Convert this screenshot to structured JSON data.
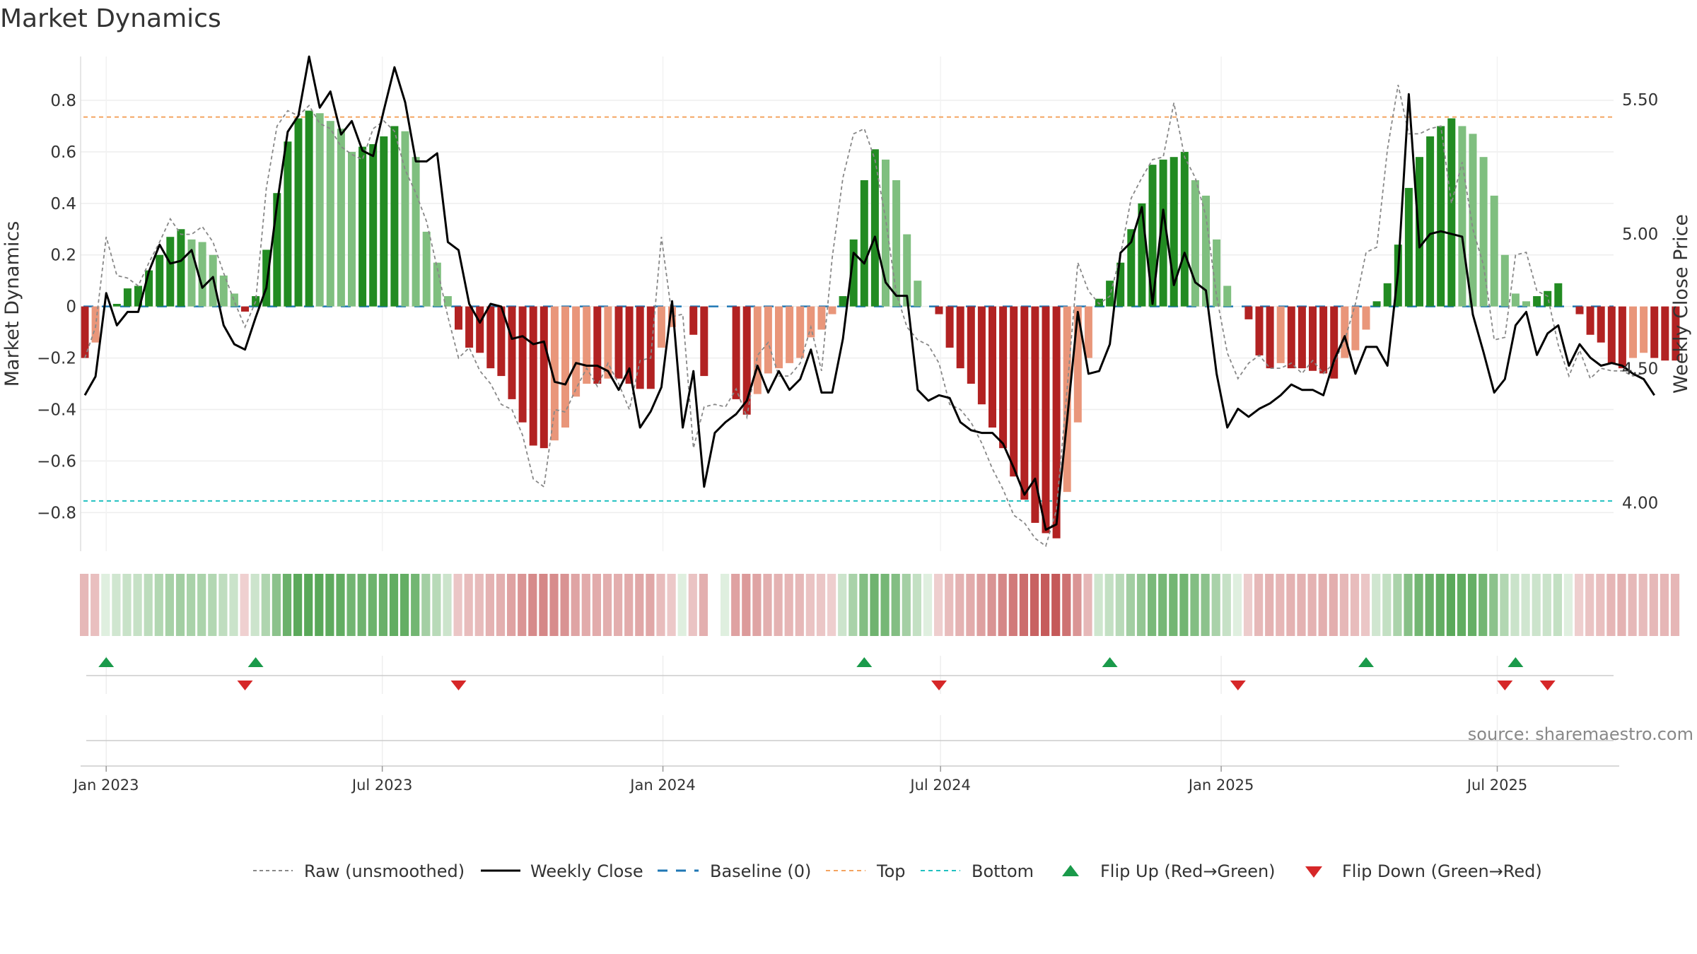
{
  "chart_data": {
    "type": "bar",
    "title": "Market Dynamics",
    "ylabel": "Market Dynamics",
    "y2label": "Weekly Close Price",
    "ylim": [
      -0.95,
      0.97
    ],
    "y2lim": [
      3.82,
      5.66
    ],
    "yticks": [
      0.8,
      0.6,
      0.4,
      0.2,
      0,
      -0.2,
      -0.4,
      -0.6,
      -0.8
    ],
    "ytick_labels": [
      "0.8",
      "0.6",
      "0.4",
      "0.2",
      "0",
      "−0.2",
      "−0.4",
      "−0.6",
      "−0.8"
    ],
    "y2ticks": [
      5.5,
      5.0,
      4.5,
      4.0
    ],
    "y2tick_labels": [
      "5.50",
      "5.00",
      "4.50",
      "4.00"
    ],
    "x_ticks": [
      {
        "date": "2023-01-01",
        "label": "Jan 2023"
      },
      {
        "date": "2023-07-01",
        "label": "Jul 2023"
      },
      {
        "date": "2024-01-01",
        "label": "Jan 2024"
      },
      {
        "date": "2024-07-01",
        "label": "Jul 2024"
      },
      {
        "date": "2025-01-01",
        "label": "Jan 2025"
      },
      {
        "date": "2025-07-01",
        "label": "Jul 2025"
      }
    ],
    "top_level": 0.735,
    "bottom_level": -0.755,
    "weeks": {
      "start": "2022-12-18",
      "interval_days": 7
    },
    "histogram": [
      -0.2,
      -0.14,
      0,
      0.01,
      0.07,
      0.08,
      0.14,
      0.2,
      0.27,
      0.3,
      0.26,
      0.25,
      0.2,
      0.12,
      0.05,
      -0.02,
      0.04,
      0.22,
      0.44,
      0.64,
      0.73,
      0.76,
      0.75,
      0.72,
      0.69,
      0.6,
      0.62,
      0.63,
      0.66,
      0.7,
      0.68,
      0.58,
      0.29,
      0.17,
      0.04,
      -0.09,
      -0.16,
      -0.18,
      -0.24,
      -0.27,
      -0.36,
      -0.45,
      -0.54,
      -0.55,
      -0.52,
      -0.47,
      -0.35,
      -0.3,
      -0.3,
      -0.28,
      -0.28,
      -0.3,
      -0.32,
      -0.32,
      -0.16,
      -0.08,
      0,
      -0.11,
      -0.27,
      0,
      0,
      -0.36,
      -0.42,
      -0.34,
      -0.26,
      -0.24,
      -0.22,
      -0.2,
      -0.12,
      -0.09,
      -0.03,
      0.04,
      0.26,
      0.49,
      0.61,
      0.57,
      0.49,
      0.28,
      0.1,
      0,
      -0.03,
      -0.16,
      -0.24,
      -0.3,
      -0.38,
      -0.47,
      -0.55,
      -0.66,
      -0.75,
      -0.84,
      -0.88,
      -0.9,
      -0.72,
      -0.45,
      -0.2,
      0.03,
      0.1,
      0.17,
      0.3,
      0.4,
      0.55,
      0.57,
      0.58,
      0.6,
      0.49,
      0.43,
      0.26,
      0.08,
      0,
      -0.05,
      -0.19,
      -0.24,
      -0.22,
      -0.24,
      -0.24,
      -0.25,
      -0.26,
      -0.28,
      -0.2,
      -0.17,
      -0.09,
      0.02,
      0.09,
      0.24,
      0.46,
      0.58,
      0.66,
      0.7,
      0.73,
      0.7,
      0.67,
      0.58,
      0.43,
      0.2,
      0.05,
      0.02,
      0.04,
      0.06,
      0.09,
      0,
      -0.03,
      -0.11,
      -0.14,
      -0.22,
      -0.24,
      -0.2,
      -0.18,
      -0.2,
      -0.21,
      -0.21
    ],
    "raw": [
      -0.2,
      -0.08,
      0.27,
      0.12,
      0.11,
      0.08,
      0.17,
      0.25,
      0.34,
      0.28,
      0.28,
      0.31,
      0.25,
      0.13,
      0.02,
      -0.08,
      0.02,
      0.46,
      0.7,
      0.76,
      0.74,
      0.78,
      0.71,
      0.69,
      0.62,
      0.59,
      0.57,
      0.69,
      0.72,
      0.68,
      0.53,
      0.44,
      0.33,
      0.15,
      -0.04,
      -0.2,
      -0.16,
      -0.25,
      -0.3,
      -0.38,
      -0.4,
      -0.5,
      -0.67,
      -0.7,
      -0.4,
      -0.41,
      -0.32,
      -0.24,
      -0.31,
      -0.22,
      -0.3,
      -0.4,
      -0.21,
      -0.2,
      0.27,
      -0.04,
      -0.03,
      -0.55,
      -0.39,
      -0.38,
      -0.39,
      -0.32,
      -0.43,
      -0.19,
      -0.14,
      -0.27,
      -0.27,
      -0.22,
      -0.08,
      -0.25,
      0.19,
      0.5,
      0.67,
      0.69,
      0.57,
      0.34,
      0.05,
      -0.08,
      -0.13,
      -0.15,
      -0.22,
      -0.38,
      -0.4,
      -0.45,
      -0.53,
      -0.63,
      -0.71,
      -0.81,
      -0.84,
      -0.9,
      -0.93,
      -0.79,
      -0.32,
      0.17,
      0.06,
      0.01,
      0.04,
      0.2,
      0.42,
      0.5,
      0.57,
      0.58,
      0.79,
      0.58,
      0.5,
      0.35,
      0.04,
      -0.18,
      -0.28,
      -0.22,
      -0.19,
      -0.24,
      -0.24,
      -0.22,
      -0.26,
      -0.21,
      -0.26,
      -0.22,
      -0.13,
      0.01,
      0.21,
      0.23,
      0.61,
      0.86,
      0.67,
      0.67,
      0.69,
      0.7,
      0.4,
      0.56,
      0.3,
      0.16,
      -0.13,
      -0.12,
      0.2,
      0.21,
      0.06,
      0.04,
      -0.15,
      -0.27,
      -0.17,
      -0.28,
      -0.24,
      -0.25,
      -0.25,
      -0.27,
      -0.26
    ],
    "close": [
      4.4,
      4.47,
      4.78,
      4.66,
      4.71,
      4.71,
      4.86,
      4.96,
      4.89,
      4.9,
      4.94,
      4.8,
      4.84,
      4.66,
      4.59,
      4.57,
      4.69,
      4.8,
      5.11,
      5.38,
      5.44,
      5.66,
      5.47,
      5.53,
      5.37,
      5.42,
      5.31,
      5.29,
      5.46,
      5.62,
      5.49,
      5.27,
      5.27,
      5.3,
      4.97,
      4.94,
      4.74,
      4.67,
      4.74,
      4.73,
      4.61,
      4.62,
      4.59,
      4.6,
      4.45,
      4.44,
      4.52,
      4.51,
      4.51,
      4.49,
      4.42,
      4.5,
      4.28,
      4.34,
      4.43,
      4.75,
      4.28,
      4.49,
      4.06,
      4.26,
      4.3,
      4.33,
      4.38,
      4.51,
      4.41,
      4.49,
      4.42,
      4.46,
      4.57,
      4.41,
      4.41,
      4.61,
      4.93,
      4.89,
      4.99,
      4.82,
      4.77,
      4.77,
      4.42,
      4.38,
      4.4,
      4.39,
      4.3,
      4.27,
      4.26,
      4.26,
      4.22,
      4.13,
      4.03,
      4.09,
      3.9,
      3.92,
      4.31,
      4.71,
      4.48,
      4.49,
      4.59,
      4.93,
      4.97,
      5.1,
      4.74,
      5.09,
      4.81,
      4.93,
      4.82,
      4.79,
      4.48,
      4.28,
      4.35,
      4.32,
      4.35,
      4.37,
      4.4,
      4.44,
      4.42,
      4.42,
      4.4,
      4.53,
      4.62,
      4.48,
      4.58,
      4.58,
      4.51,
      4.86,
      5.52,
      4.95,
      5.0,
      5.01,
      5.0,
      4.99,
      4.7,
      4.56,
      4.41,
      4.46,
      4.66,
      4.71,
      4.55,
      4.63,
      4.66,
      4.51,
      4.59,
      4.54,
      4.51,
      4.52,
      4.51,
      4.48,
      4.46,
      4.4
    ],
    "flip_up_weeks": [
      2,
      16,
      73,
      96,
      120,
      134
    ],
    "flip_down_weeks": [
      15,
      35,
      80,
      108,
      133,
      137
    ],
    "colors": {
      "green_strong": "#228b22",
      "green_weak": "#7fbf7f",
      "red_strong": "#b22222",
      "red_weak": "#e9967a",
      "close_line": "#000000",
      "raw_line": "#888888",
      "baseline": "#1f77b4",
      "top_line": "#f4a460",
      "bottom_line": "#20c0c0",
      "flip_up": "#1a9a4a",
      "flip_down": "#d62728"
    },
    "legend": [
      {
        "key": "raw",
        "label": "Raw (unsmoothed)"
      },
      {
        "key": "close",
        "label": "Weekly Close"
      },
      {
        "key": "baseline",
        "label": "Baseline (0)"
      },
      {
        "key": "top",
        "label": "Top"
      },
      {
        "key": "bottom",
        "label": "Bottom"
      },
      {
        "key": "flip_up",
        "label": "Flip Up (Red→Green)"
      },
      {
        "key": "flip_down",
        "label": "Flip Down (Green→Red)"
      }
    ],
    "legend_position": "bottom-center",
    "source_text": "source: sharemaestro.com"
  }
}
